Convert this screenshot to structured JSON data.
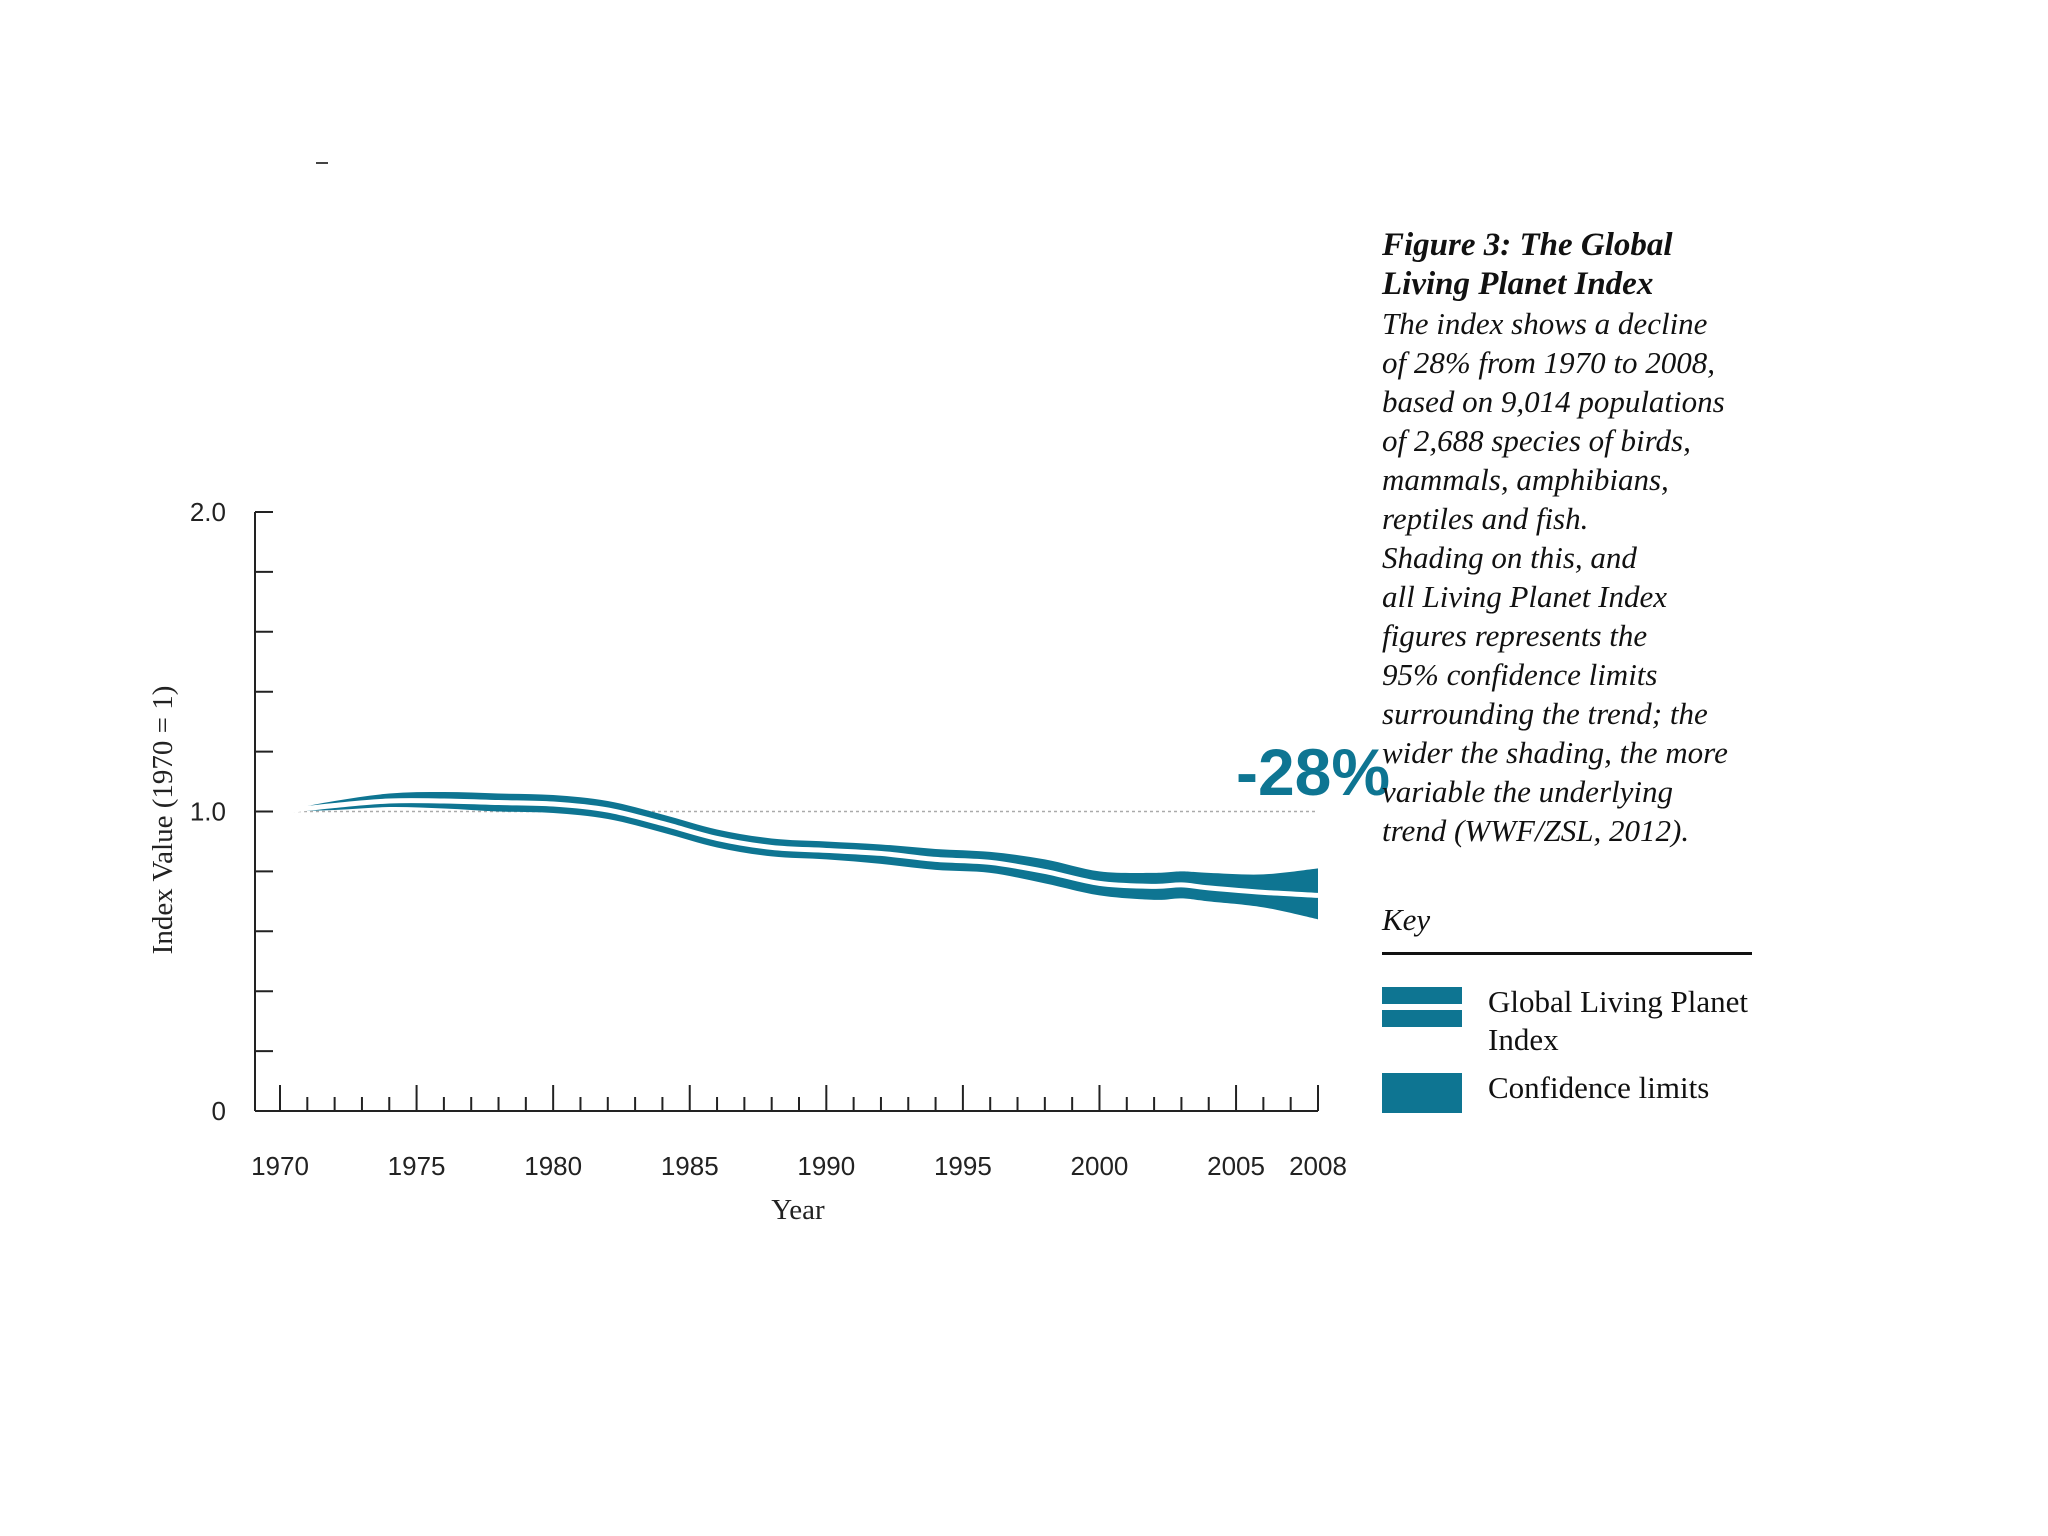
{
  "chart_data": {
    "type": "area",
    "title": "Figure 3: The Global Living Planet Index",
    "xlabel": "Year",
    "ylabel": "Index Value (1970 = 1)",
    "xlim": [
      1970,
      2008
    ],
    "ylim": [
      0,
      2.0
    ],
    "x_tick_labels": [
      "1970",
      "1975",
      "1980",
      "1985",
      "1990",
      "1995",
      "2000",
      "2005",
      "2008"
    ],
    "y_tick_labels": [
      "0",
      "1.0",
      "2.0"
    ],
    "baseline": 1.0,
    "annotation": "-28%",
    "series": [
      {
        "name": "Global Living Planet Index",
        "x": [
          1970,
          1972,
          1974,
          1976,
          1978,
          1980,
          1982,
          1984,
          1986,
          1988,
          1990,
          1992,
          1994,
          1996,
          1998,
          2000,
          2002,
          2003,
          2004,
          2006,
          2008
        ],
        "values": [
          1.0,
          1.02,
          1.035,
          1.035,
          1.03,
          1.025,
          1.005,
          0.96,
          0.91,
          0.88,
          0.87,
          0.86,
          0.84,
          0.83,
          0.8,
          0.76,
          0.75,
          0.755,
          0.745,
          0.73,
          0.72
        ]
      },
      {
        "name": "Confidence limits (upper)",
        "x": [
          1970,
          1972,
          1974,
          1976,
          1978,
          1980,
          1982,
          1984,
          1986,
          1988,
          1990,
          1992,
          1994,
          1996,
          1998,
          2000,
          2002,
          2003,
          2004,
          2006,
          2008
        ],
        "values": [
          1.0,
          1.035,
          1.06,
          1.065,
          1.06,
          1.055,
          1.035,
          0.99,
          0.94,
          0.91,
          0.9,
          0.89,
          0.875,
          0.865,
          0.84,
          0.8,
          0.795,
          0.8,
          0.795,
          0.79,
          0.81
        ]
      },
      {
        "name": "Confidence limits (lower)",
        "x": [
          1970,
          1972,
          1974,
          1976,
          1978,
          1980,
          1982,
          1984,
          1986,
          1988,
          1990,
          1992,
          1994,
          1996,
          1998,
          2000,
          2002,
          2003,
          2004,
          2006,
          2008
        ],
        "values": [
          1.0,
          1.005,
          1.015,
          1.01,
          1.0,
          0.995,
          0.975,
          0.93,
          0.88,
          0.85,
          0.84,
          0.825,
          0.805,
          0.795,
          0.76,
          0.72,
          0.705,
          0.71,
          0.7,
          0.68,
          0.64
        ]
      }
    ],
    "colors": {
      "band": "#0e7592",
      "line": "#ffffff",
      "baseline": "#aaaaaa",
      "axis": "#222222"
    }
  },
  "caption": {
    "title_line1": "Figure 3: The Global",
    "title_line2": "Living Planet Index",
    "desc_lines": [
      "The index shows a decline",
      "of 28% from 1970 to 2008,",
      "based on 9,014 populations",
      "of 2,688 species of birds,",
      "mammals, amphibians,",
      "reptiles and fish.",
      "Shading on this, and",
      "all Living Planet Index",
      "figures represents the",
      "95% confidence limits",
      "surrounding the trend; the",
      "wider the shading, the more",
      "variable the underlying",
      "trend (WWF/ZSL, 2012)."
    ]
  },
  "key": {
    "title": "Key",
    "items": [
      {
        "label_line1": "Global Living Planet",
        "label_line2": "Index"
      },
      {
        "label_line1": "Confidence limits",
        "label_line2": ""
      }
    ]
  }
}
